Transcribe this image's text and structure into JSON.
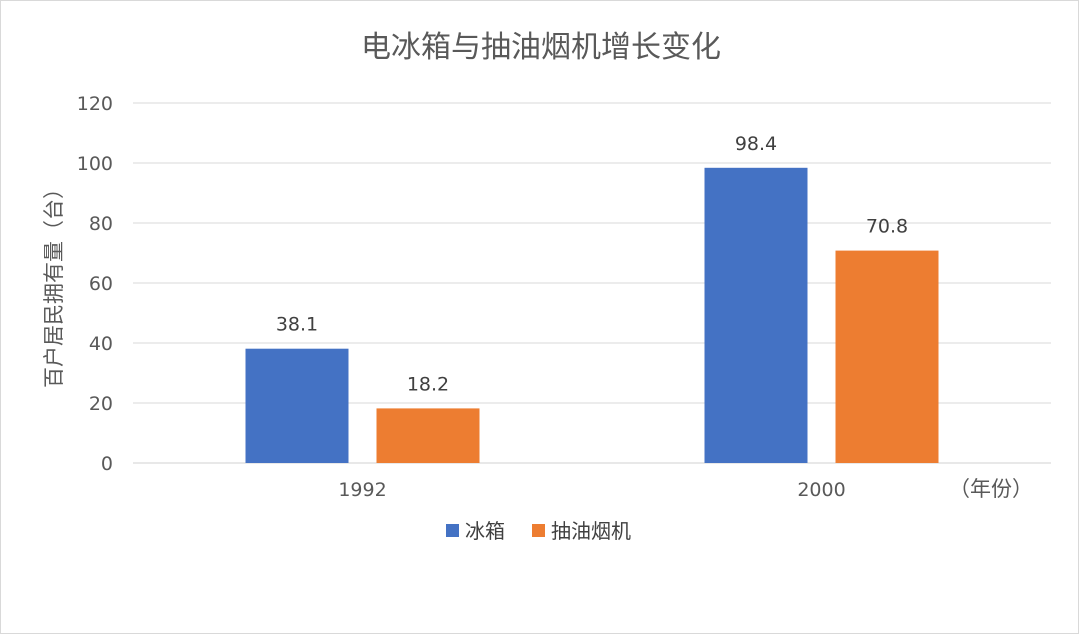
{
  "chart_data": {
    "type": "bar",
    "title": "电冰箱与抽油烟机增长变化",
    "ylabel": "百户居民拥有量（台）",
    "x_unit": "（年份）",
    "categories": [
      "1992",
      "2000"
    ],
    "series": [
      {
        "name": "冰箱",
        "values": [
          38.1,
          98.4
        ],
        "color": "#4472C4"
      },
      {
        "name": "抽油烟机",
        "values": [
          18.2,
          70.8
        ],
        "color": "#ED7D31"
      }
    ],
    "data_labels": [
      [
        "38.1",
        "98.4"
      ],
      [
        "18.2",
        "70.8"
      ]
    ],
    "ylim": [
      0,
      120
    ],
    "yticks": [
      0,
      20,
      40,
      60,
      80,
      100,
      120
    ],
    "grid": true,
    "legend_position": "bottom"
  }
}
